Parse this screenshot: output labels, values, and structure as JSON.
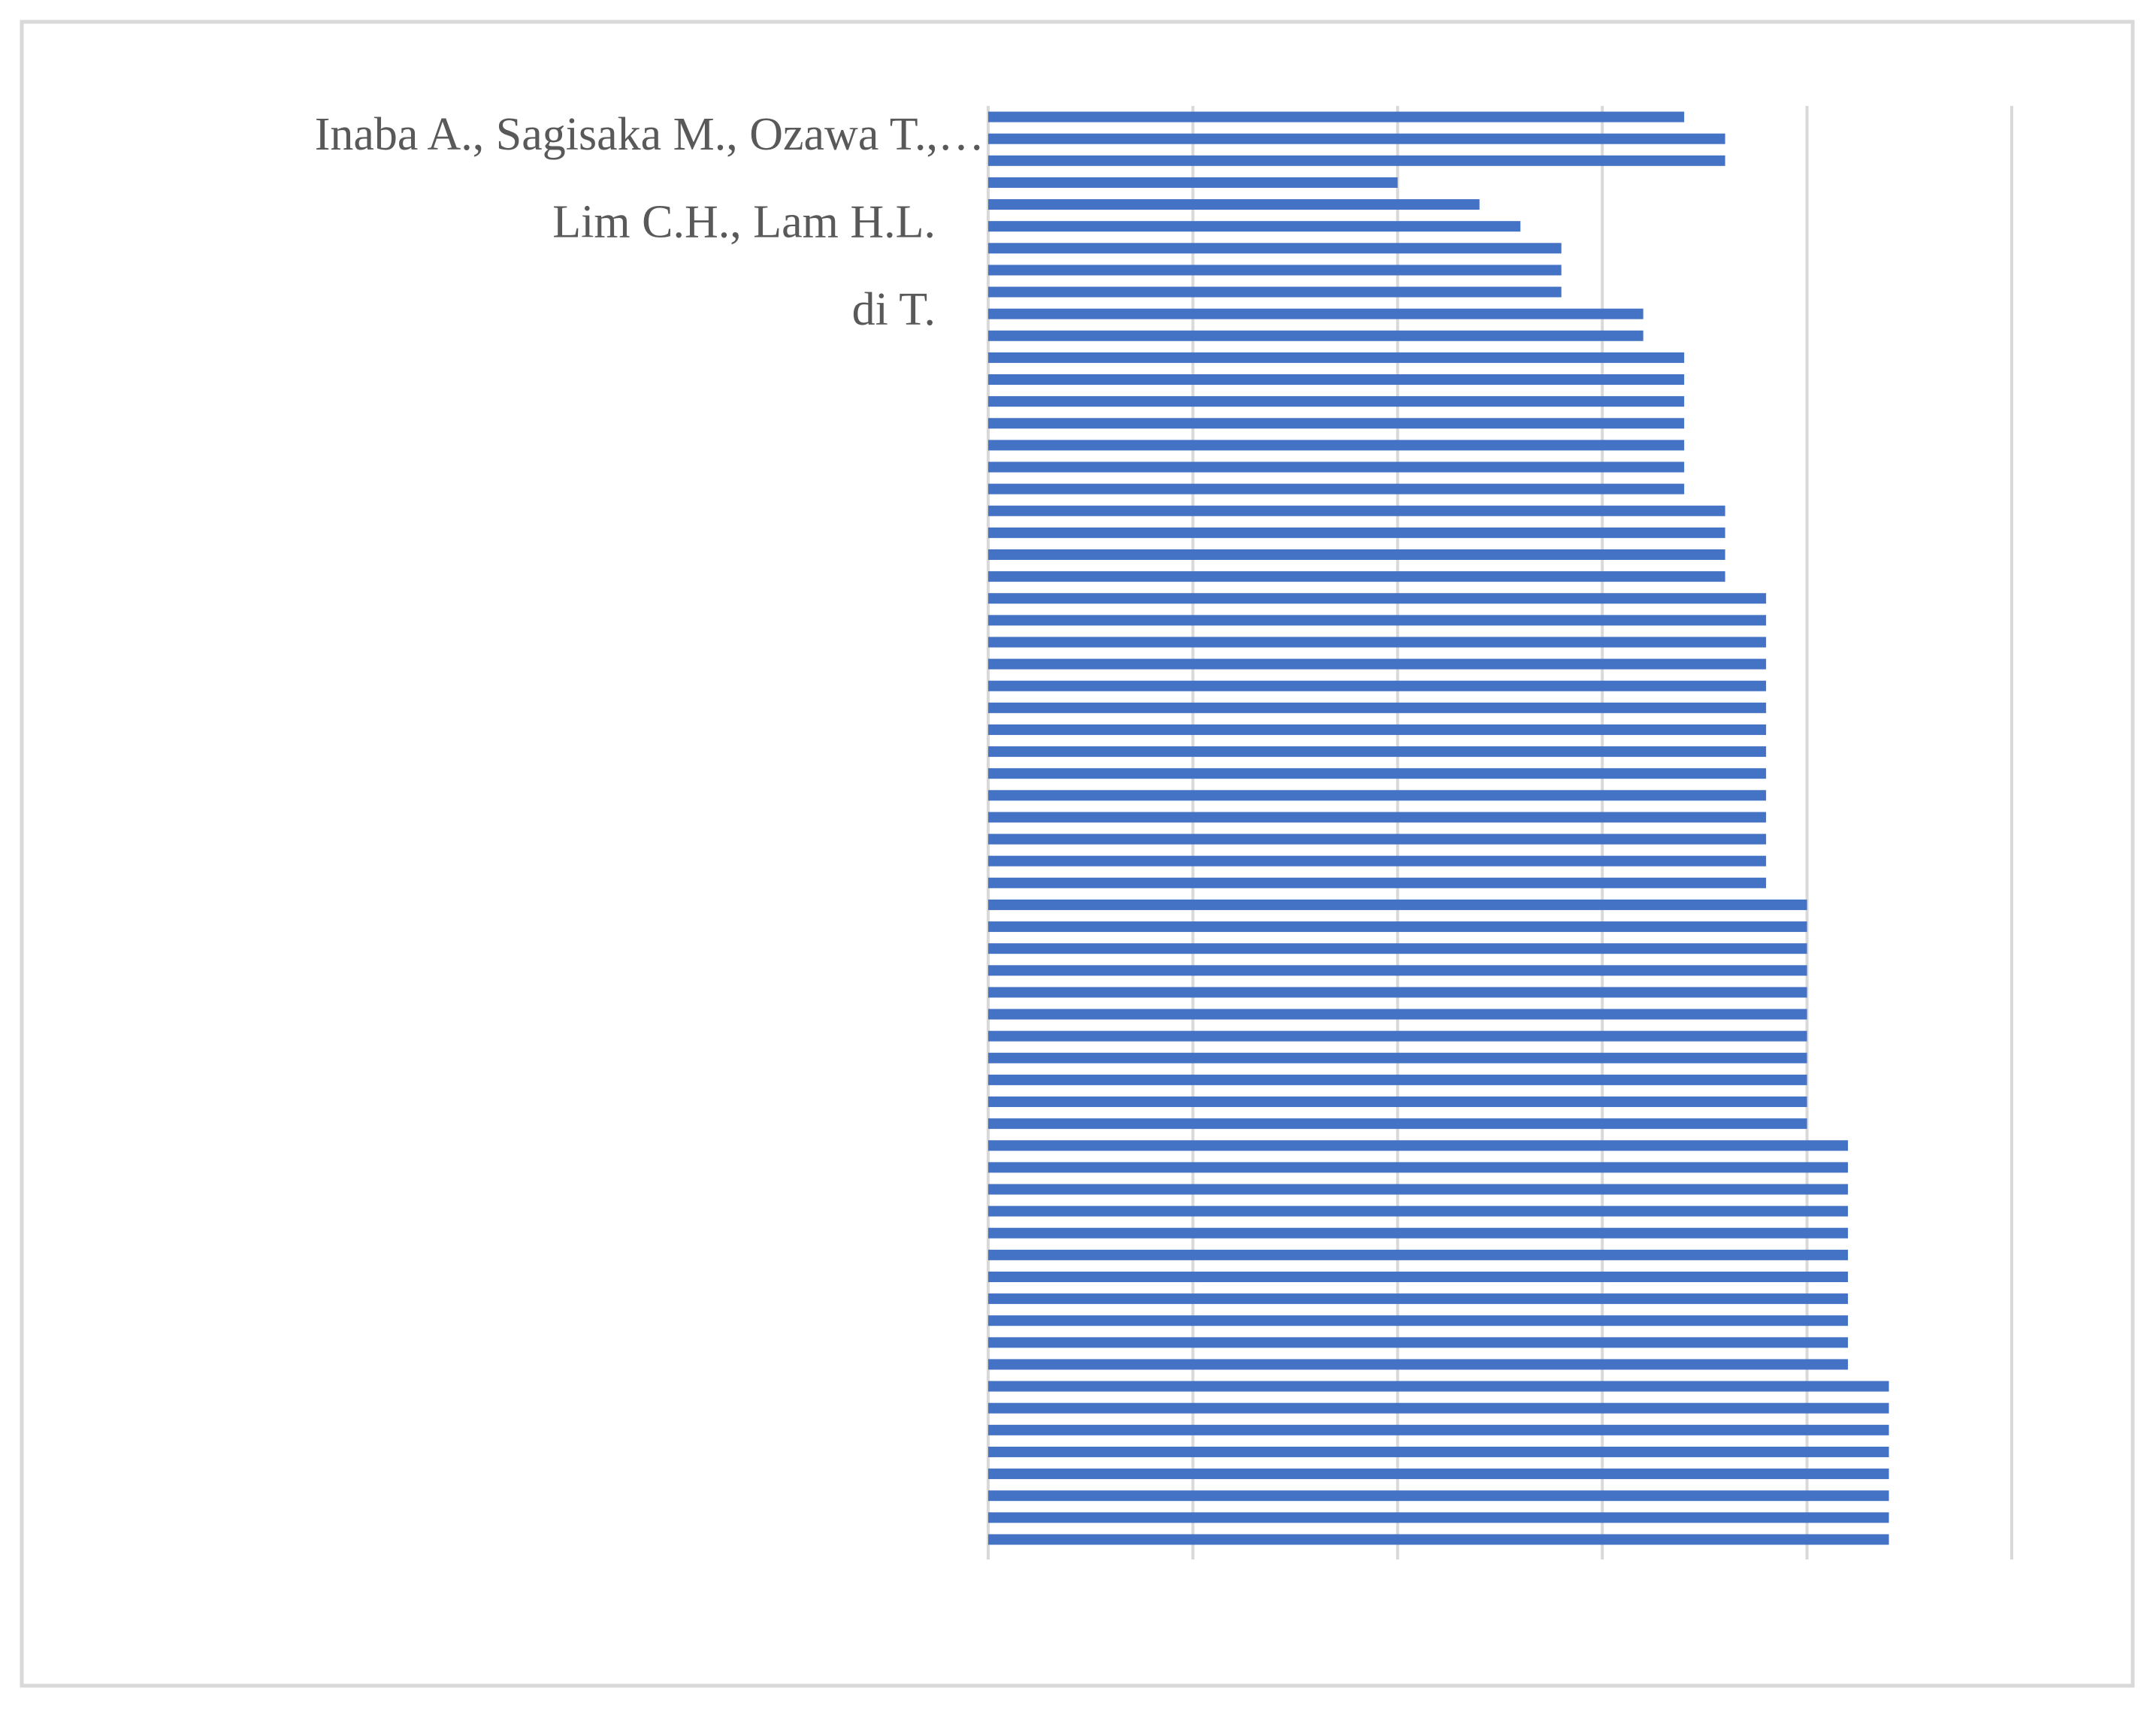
{
  "chart_data": {
    "type": "barh",
    "categories": [
      null,
      "Inaba A., Sagisaka M., Ozawa T.,…",
      null,
      null,
      null,
      "Lim C.H., Lam H.L.",
      null,
      null,
      null,
      "di T.",
      null,
      null,
      null,
      null,
      null,
      null,
      null,
      null,
      null,
      null,
      null,
      null,
      null,
      null,
      null,
      null,
      null,
      null,
      null,
      null,
      null,
      null,
      null,
      null,
      null,
      null,
      null,
      null,
      null,
      null,
      null,
      null,
      null,
      null,
      null,
      null,
      null,
      null,
      null,
      null,
      null,
      null,
      null,
      null,
      null,
      null,
      null,
      null,
      null,
      null,
      null,
      null,
      null,
      null,
      null,
      null
    ],
    "values": [
      17,
      18,
      18,
      10,
      12,
      13,
      14,
      14,
      14,
      16,
      16,
      17,
      17,
      17,
      17,
      17,
      17,
      17,
      18,
      18,
      18,
      18,
      19,
      19,
      19,
      19,
      19,
      19,
      19,
      19,
      19,
      19,
      19,
      19,
      19,
      19,
      20,
      20,
      20,
      20,
      20,
      20,
      20,
      20,
      20,
      20,
      20,
      21,
      21,
      21,
      21,
      21,
      21,
      21,
      21,
      21,
      21,
      21,
      22,
      22,
      22,
      22,
      22,
      22,
      22,
      22
    ],
    "color": "#4472c4",
    "xlim": [
      0,
      25
    ],
    "xticks": [
      0,
      5,
      10,
      15,
      20,
      25
    ],
    "xtick_labels": false,
    "grid": true
  }
}
